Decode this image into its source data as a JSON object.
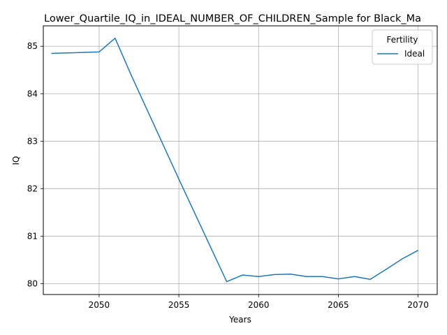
{
  "chart_data": {
    "type": "line",
    "title": "Lower_Quartile_IQ_in_IDEAL_NUMBER_OF_CHILDREN_Sample for Black_Ma",
    "xlabel": "Years",
    "ylabel": "IQ",
    "xlim": [
      2046.5,
      2071.2
    ],
    "ylim": [
      79.77,
      85.43
    ],
    "xticks": [
      2050,
      2055,
      2060,
      2065,
      2070
    ],
    "yticks": [
      80,
      81,
      82,
      83,
      84,
      85
    ],
    "grid": true,
    "legend": {
      "title": "Fertility",
      "placement": "top-right"
    },
    "series": [
      {
        "name": "Ideal",
        "color": "#1f77b4",
        "x": [
          2047,
          2050,
          2051,
          2052,
          2055,
          2058,
          2059,
          2060,
          2061,
          2062,
          2063,
          2064,
          2065,
          2066,
          2067,
          2068,
          2069,
          2070
        ],
        "y": [
          84.85,
          84.88,
          85.17,
          84.4,
          82.2,
          80.04,
          80.18,
          80.15,
          80.19,
          80.2,
          80.15,
          80.15,
          80.1,
          80.15,
          80.09,
          80.3,
          80.52,
          80.7
        ]
      }
    ]
  }
}
